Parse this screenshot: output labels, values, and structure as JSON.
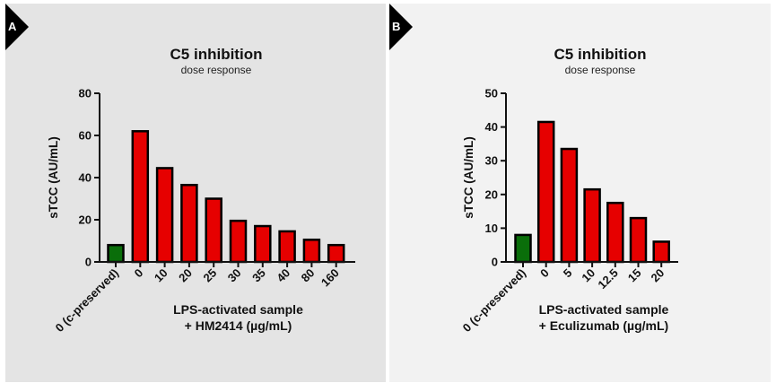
{
  "panels": [
    {
      "badge": "A",
      "background": "#e4e4e4"
    },
    {
      "badge": "B",
      "background": "#f2f2f2"
    }
  ],
  "colors": {
    "control": "#0a6e0a",
    "treated": "#e60000",
    "outline": "#000000"
  },
  "chart_data": [
    {
      "type": "bar",
      "title": "C5 inhibition",
      "subtitle": "dose response",
      "ylabel": "sTCC (AU/mL)",
      "xlabel": [
        "LPS-activated sample",
        "+ HM2414 (µg/mL)"
      ],
      "ylim": [
        0,
        80
      ],
      "yticks": [
        0,
        20,
        40,
        60,
        80
      ],
      "grid": false,
      "categories": [
        "0 (c-preserved)",
        "0",
        "10",
        "20",
        "25",
        "30",
        "35",
        "40",
        "80",
        "160"
      ],
      "values": [
        8,
        62,
        44.5,
        36.5,
        30,
        19.5,
        17,
        14.5,
        10.5,
        8
      ],
      "bar_colors": [
        "control",
        "treated",
        "treated",
        "treated",
        "treated",
        "treated",
        "treated",
        "treated",
        "treated",
        "treated"
      ]
    },
    {
      "type": "bar",
      "title": "C5 inhibition",
      "subtitle": "dose response",
      "ylabel": "sTCC (AU/mL)",
      "xlabel": [
        "LPS-activated sample",
        "+ Eculizumab (µg/mL)"
      ],
      "ylim": [
        0,
        50
      ],
      "yticks": [
        0,
        10,
        20,
        30,
        40,
        50
      ],
      "grid": false,
      "categories": [
        "0 (c-preserved)",
        "0",
        "5",
        "10",
        "12.5",
        "15",
        "20"
      ],
      "values": [
        8,
        41.5,
        33.5,
        21.5,
        17.5,
        13,
        6
      ],
      "bar_colors": [
        "control",
        "treated",
        "treated",
        "treated",
        "treated",
        "treated",
        "treated"
      ]
    }
  ]
}
